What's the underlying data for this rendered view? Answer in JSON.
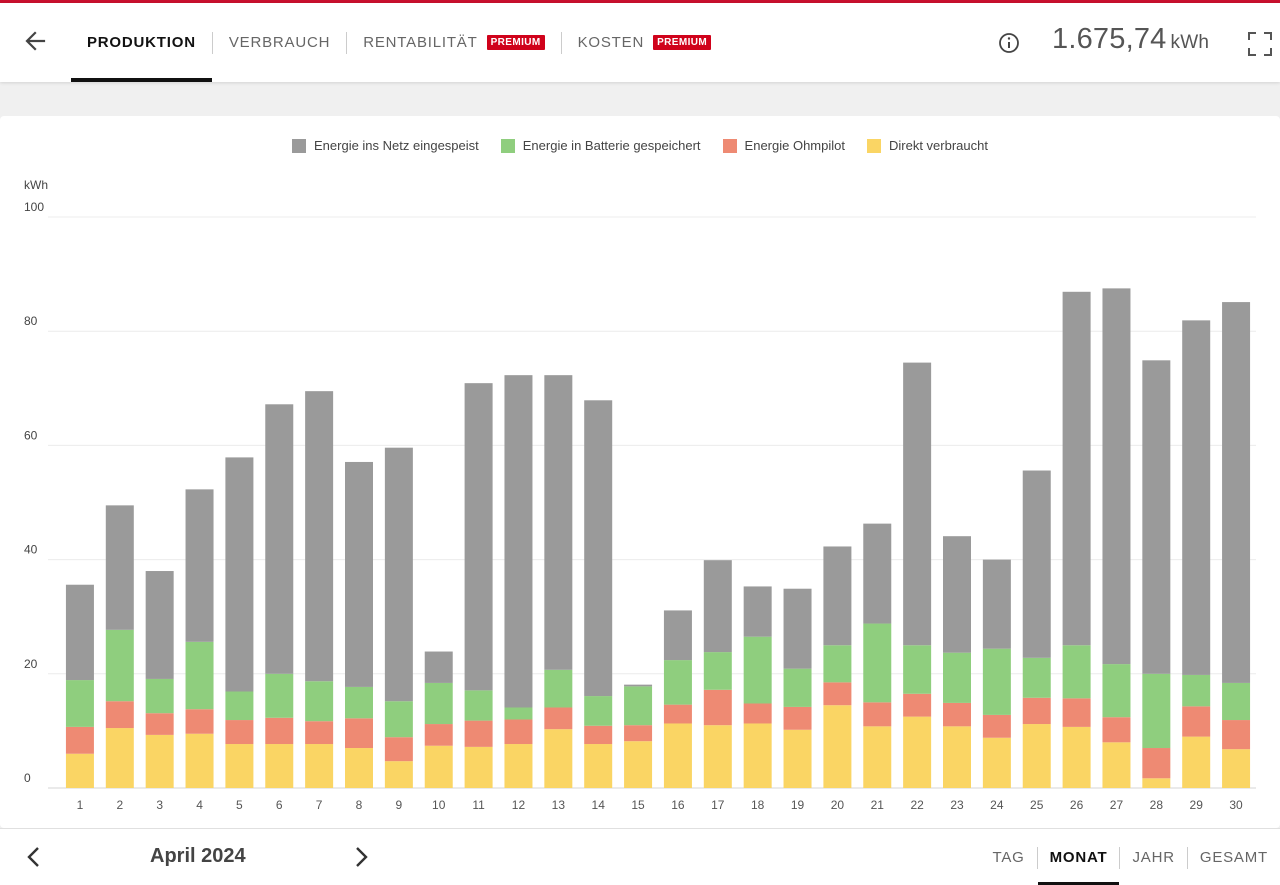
{
  "header": {
    "tabs": [
      {
        "label": "PRODUKTION",
        "active": true,
        "premium": false
      },
      {
        "label": "VERBRAUCH",
        "active": false,
        "premium": false
      },
      {
        "label": "RENTABILITÄT",
        "active": false,
        "premium": true
      },
      {
        "label": "KOSTEN",
        "active": false,
        "premium": true
      }
    ],
    "premium_label": "PREMIUM",
    "total_value": "1.675,74",
    "total_unit": "kWh",
    "icons": {
      "back": "arrow-left-icon",
      "info": "info-icon",
      "fullscreen": "fullscreen-icon"
    }
  },
  "chart_data": {
    "type": "bar",
    "stacked": true,
    "ylabel": "kWh",
    "ylim": [
      0,
      100
    ],
    "yticks": [
      0,
      20,
      40,
      60,
      80,
      100
    ],
    "grid": true,
    "legend_position": "top-center",
    "categories": [
      "1",
      "2",
      "3",
      "4",
      "5",
      "6",
      "7",
      "8",
      "9",
      "10",
      "11",
      "12",
      "13",
      "14",
      "15",
      "16",
      "17",
      "18",
      "19",
      "20",
      "21",
      "22",
      "23",
      "24",
      "25",
      "26",
      "27",
      "28",
      "29",
      "30"
    ],
    "series": [
      {
        "name": "Direkt verbraucht",
        "color": "#fad564",
        "values": [
          6.0,
          10.5,
          9.3,
          9.5,
          7.7,
          7.7,
          7.7,
          7.0,
          4.7,
          7.4,
          7.2,
          7.7,
          10.3,
          7.7,
          8.2,
          11.3,
          11.0,
          11.3,
          10.2,
          14.5,
          10.8,
          12.5,
          10.8,
          8.8,
          11.2,
          10.7,
          8.0,
          1.7,
          9.0,
          6.8
        ]
      },
      {
        "name": "Energie Ohmpilot",
        "color": "#ee8a73",
        "values": [
          4.7,
          4.7,
          3.8,
          4.3,
          4.2,
          4.6,
          4.0,
          5.2,
          4.2,
          3.8,
          4.6,
          4.3,
          3.8,
          3.2,
          2.8,
          3.3,
          6.2,
          3.5,
          4.0,
          4.0,
          4.2,
          4.0,
          4.1,
          4.0,
          4.6,
          5.0,
          4.4,
          5.3,
          5.3,
          5.1
        ]
      },
      {
        "name": "Energie in Batterie gespeichert",
        "color": "#8fce7e",
        "values": [
          8.2,
          12.5,
          6.0,
          11.8,
          5.0,
          7.7,
          7.0,
          5.5,
          6.3,
          7.2,
          5.3,
          2.1,
          6.6,
          5.2,
          6.8,
          7.8,
          6.6,
          11.7,
          6.7,
          6.5,
          13.8,
          8.5,
          8.8,
          11.6,
          7.0,
          9.3,
          9.3,
          13.0,
          5.5,
          6.5
        ]
      },
      {
        "name": "Energie ins Netz eingespeist",
        "color": "#9a9a9a",
        "values": [
          16.7,
          21.8,
          18.9,
          26.7,
          41.0,
          47.2,
          50.8,
          39.4,
          44.4,
          5.5,
          53.8,
          58.2,
          51.6,
          51.8,
          0.3,
          8.7,
          16.1,
          8.8,
          14.0,
          17.3,
          17.5,
          49.5,
          20.4,
          15.6,
          32.8,
          61.9,
          65.8,
          54.9,
          62.1,
          66.7
        ]
      }
    ]
  },
  "footer": {
    "period": "April 2024",
    "ranges": [
      {
        "label": "TAG",
        "active": false
      },
      {
        "label": "MONAT",
        "active": true
      },
      {
        "label": "JAHR",
        "active": false
      },
      {
        "label": "GESAMT",
        "active": false
      }
    ],
    "icons": {
      "prev": "chevron-left-icon",
      "next": "chevron-right-icon"
    }
  }
}
